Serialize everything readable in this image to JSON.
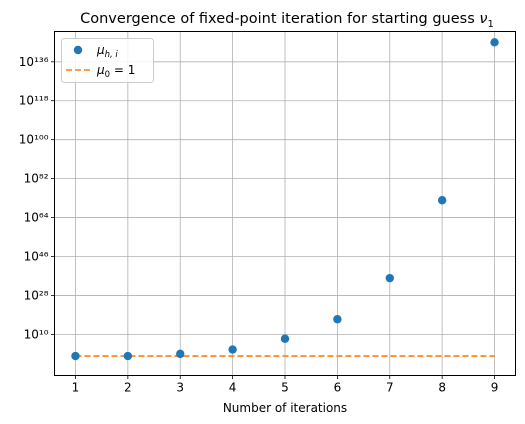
{
  "chart_data": {
    "type": "scatter",
    "title": "Convergence of fixed-point iteration for starting guess ",
    "title_symbol": "ν",
    "title_symbol_sub": "1",
    "xlabel": "Number of iterations",
    "ylabel": "",
    "x_scale": "linear",
    "y_scale": "log",
    "xlim": [
      0.6,
      9.4
    ],
    "ylim_exponent": [
      -9,
      150
    ],
    "x_ticks": [
      1,
      2,
      3,
      4,
      5,
      6,
      7,
      8,
      9
    ],
    "x_tick_labels": [
      "1",
      "2",
      "3",
      "4",
      "5",
      "6",
      "7",
      "8",
      "9"
    ],
    "y_tick_exponents": [
      10,
      28,
      46,
      64,
      82,
      100,
      118,
      136
    ],
    "y_tick_labels": [
      "10¹⁰",
      "10²⁸",
      "10⁴⁶",
      "10⁶⁴",
      "10⁸²",
      "10¹⁰⁰",
      "10¹¹⁸",
      "10¹³⁶"
    ],
    "grid": true,
    "legend_position": "top-left",
    "series": [
      {
        "name": "μ_{h,i}",
        "kind": "scatter",
        "color": "#1f77b4",
        "x": [
          1,
          2,
          3,
          4,
          5,
          6,
          7,
          8,
          9
        ],
        "y_log10": [
          0,
          0,
          1,
          3,
          8,
          17,
          36,
          72,
          145
        ]
      },
      {
        "name": "μ_0 = 1",
        "kind": "line",
        "style": "dashed",
        "color": "#ff7f0e",
        "x": [
          1,
          9
        ],
        "y_log10": [
          0,
          0
        ]
      }
    ],
    "legend": [
      {
        "symbol": "μ",
        "sub": "h, i",
        "suffix": ""
      },
      {
        "symbol": "μ",
        "sub": "0",
        "suffix": " = 1"
      }
    ]
  }
}
